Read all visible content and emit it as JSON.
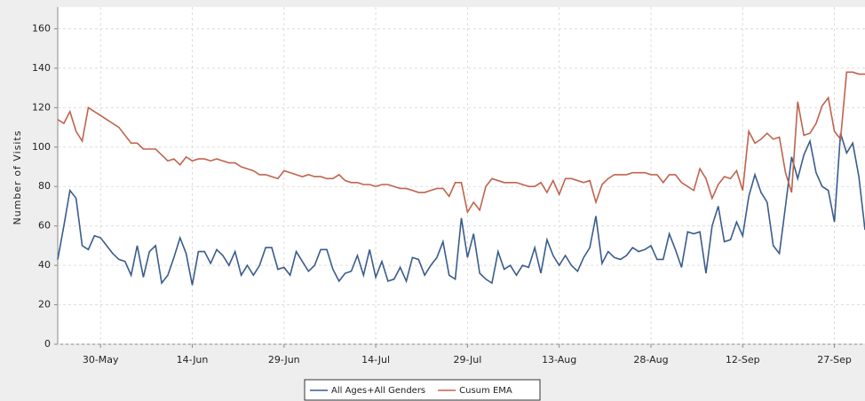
{
  "chart_data": {
    "type": "line",
    "y_label": "Number of Visits",
    "categories": [
      null,
      null,
      null,
      null,
      null,
      null,
      null,
      "30-May",
      null,
      null,
      null,
      null,
      null,
      null,
      null,
      null,
      null,
      null,
      null,
      null,
      null,
      null,
      "14-Jun",
      null,
      null,
      null,
      null,
      null,
      null,
      null,
      null,
      null,
      null,
      null,
      null,
      null,
      null,
      "29-Jun",
      null,
      null,
      null,
      null,
      null,
      null,
      null,
      null,
      null,
      null,
      null,
      null,
      null,
      null,
      "14-Jul",
      null,
      null,
      null,
      null,
      null,
      null,
      null,
      null,
      null,
      null,
      null,
      null,
      null,
      null,
      "29-Jul",
      null,
      null,
      null,
      null,
      null,
      null,
      null,
      null,
      null,
      null,
      null,
      null,
      null,
      null,
      "13-Aug",
      null,
      null,
      null,
      null,
      null,
      null,
      null,
      null,
      null,
      null,
      null,
      null,
      null,
      null,
      "28-Aug",
      null,
      null,
      null,
      null,
      null,
      null,
      null,
      null,
      null,
      null,
      null,
      null,
      null,
      null,
      "12-Sep",
      null,
      null,
      null,
      null,
      null,
      null,
      null,
      null,
      null,
      null,
      null,
      null,
      null,
      null,
      "27-Sep",
      null,
      null,
      null,
      null,
      null
    ],
    "series": [
      {
        "name": "All Ages+All Genders",
        "color": "#3a5c8c",
        "values": [
          43,
          60,
          78,
          74,
          50,
          48,
          55,
          54,
          50,
          46,
          43,
          42,
          35,
          50,
          34,
          47,
          50,
          31,
          35,
          44,
          54,
          46,
          30,
          47,
          47,
          41,
          48,
          45,
          40,
          47,
          35,
          40,
          35,
          40,
          49,
          49,
          38,
          39,
          35,
          47,
          42,
          37,
          40,
          48,
          48,
          38,
          32,
          36,
          37,
          45,
          35,
          48,
          34,
          42,
          32,
          33,
          39,
          32,
          44,
          43,
          35,
          40,
          44,
          52,
          35,
          33,
          64,
          44,
          56,
          36,
          33,
          31,
          47,
          38,
          40,
          35,
          40,
          39,
          49,
          36,
          53,
          45,
          40,
          45,
          40,
          37,
          44,
          49,
          65,
          41,
          47,
          44,
          43,
          45,
          49,
          47,
          48,
          50,
          43,
          43,
          56,
          48,
          39,
          57,
          56,
          57,
          36,
          60,
          70,
          52,
          53,
          62,
          55,
          75,
          86,
          77,
          72,
          50,
          46,
          70,
          95,
          84,
          96,
          103,
          87,
          80,
          78,
          62,
          107,
          97,
          102,
          85,
          58
        ]
      },
      {
        "name": "Cusum EMA",
        "color": "#c0634d",
        "values": [
          114,
          112,
          118,
          108,
          103,
          120,
          118,
          116,
          114,
          112,
          110,
          106,
          102,
          102,
          99,
          99,
          99,
          96,
          93,
          94,
          91,
          95,
          93,
          94,
          94,
          93,
          94,
          93,
          92,
          92,
          90,
          89,
          88,
          86,
          86,
          85,
          84,
          88,
          87,
          86,
          85,
          86,
          85,
          85,
          84,
          84,
          86,
          83,
          82,
          82,
          81,
          81,
          80,
          81,
          81,
          80,
          79,
          79,
          78,
          77,
          77,
          78,
          79,
          79,
          75,
          82,
          82,
          67,
          72,
          68,
          80,
          84,
          83,
          82,
          82,
          82,
          81,
          80,
          80,
          82,
          77,
          83,
          76,
          84,
          84,
          83,
          82,
          83,
          72,
          81,
          84,
          86,
          86,
          86,
          87,
          87,
          87,
          86,
          86,
          82,
          86,
          86,
          82,
          80,
          78,
          89,
          84,
          74,
          81,
          85,
          84,
          88,
          78,
          108,
          102,
          104,
          107,
          104,
          105,
          87,
          77,
          123,
          106,
          107,
          112,
          121,
          125,
          108,
          104,
          138,
          138,
          137,
          137
        ]
      }
    ],
    "ylim": [
      0,
      171
    ],
    "yticks": [
      0,
      20,
      40,
      60,
      80,
      100,
      120,
      140,
      160
    ],
    "grid": true
  }
}
